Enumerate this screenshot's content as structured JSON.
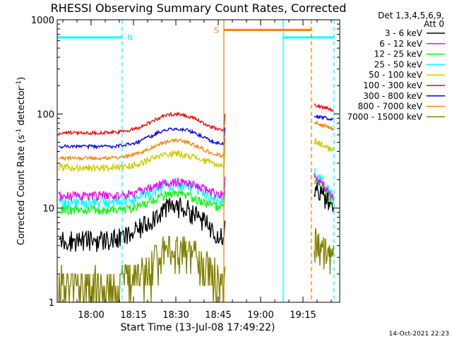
{
  "chart_data": {
    "type": "line",
    "title": "RHESSI Observing Summary Count Rates, Corrected",
    "xlabel": "Start Time (13-Jul-08 17:49:22)",
    "ylabel_main": "Corrected Count Rate (s",
    "ylabel_sup1": "-1",
    "ylabel_mid": " detector",
    "ylabel_sup2": "-1",
    "ylabel_end": ")",
    "yscale": "log",
    "ylim": [
      1,
      1000
    ],
    "xlim_minutes": [
      -12,
      88
    ],
    "x_ticks": [
      {
        "m": 0,
        "label": "18:00"
      },
      {
        "m": 15,
        "label": "18:15"
      },
      {
        "m": 30,
        "label": "18:30"
      },
      {
        "m": 45,
        "label": "18:45"
      },
      {
        "m": 60,
        "label": "19:00"
      },
      {
        "m": 75,
        "label": "19:15"
      }
    ],
    "y_ticks": [
      {
        "v": 1,
        "label": "1"
      },
      {
        "v": 10,
        "label": "10"
      },
      {
        "v": 100,
        "label": "100"
      },
      {
        "v": 1000,
        "label": "1000"
      }
    ],
    "legend_title": [
      "Det 1,3,4,5,6,9,",
      "Att 0"
    ],
    "legend_position": "right",
    "timestamp": "14-Oct-2021 22:23",
    "annotations": {
      "night_label": "N",
      "saa_label": "S",
      "night_bars": [
        [
          -12,
          11
        ],
        [
          68,
          86
        ]
      ],
      "night_level": 650,
      "night_start_lines": [
        68
      ],
      "night_end_lines": [
        11,
        86
      ],
      "saa_bar": [
        47,
        78
      ],
      "saa_level": 780,
      "saa_start_lines": [
        47
      ],
      "saa_end_lines": [
        78
      ]
    },
    "series": [
      {
        "name": "3 - 6 keV",
        "color": "#000000",
        "base": 4.6,
        "peak": 10.5,
        "noise": 0.12,
        "after": [
          17,
          9
        ]
      },
      {
        "name": "6 - 12 keV",
        "color": "#ff00ff",
        "base": 13.5,
        "peak": 19,
        "noise": 0.05,
        "after": [
          22,
          12
        ]
      },
      {
        "name": "12 - 25 keV",
        "color": "#00ff00",
        "base": 9.5,
        "peak": 14,
        "noise": 0.05,
        "after": [
          20,
          11
        ]
      },
      {
        "name": "25 - 50 keV",
        "color": "#00ffff",
        "base": 11.5,
        "peak": 18,
        "noise": 0.07,
        "after": [
          24,
          12
        ]
      },
      {
        "name": "50 - 100 keV",
        "color": "#cccc00",
        "base": 27,
        "peak": 38,
        "noise": 0.04,
        "after": [
          52,
          40
        ]
      },
      {
        "name": "100 - 300 keV",
        "color": "#ff0000",
        "base": 63,
        "peak": 100,
        "noise": 0.02,
        "after": [
          125,
          110
        ]
      },
      {
        "name": "300 - 800 keV",
        "color": "#0000ff",
        "base": 45,
        "peak": 70,
        "noise": 0.02,
        "after": [
          95,
          88
        ]
      },
      {
        "name": "800 - 7000 keV",
        "color": "#ff7f00",
        "base": 34,
        "peak": 52,
        "noise": 0.02,
        "after": [
          82,
          68
        ]
      },
      {
        "name": "7000 - 15000 keV",
        "color": "#808000",
        "base": 1.5,
        "peak": 3.5,
        "noise": 0.25,
        "after": [
          4.2,
          2.8
        ]
      }
    ]
  }
}
